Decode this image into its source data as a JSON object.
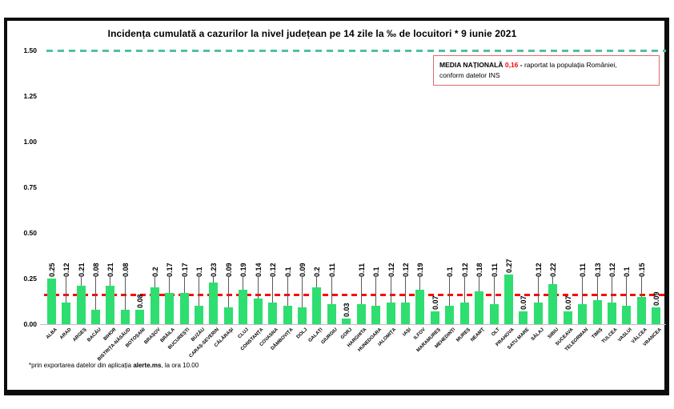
{
  "annotation": {
    "label": "MEDIA NAȚIONALĂ",
    "value": "0,16",
    "dash": "-",
    "line1_rest": "raportat la populația României,",
    "line2": "conform datelor INS"
  },
  "footnote": {
    "prefix": "*prin exportarea datelor din aplicația ",
    "bold": "alerte.ms",
    "suffix": ", la ora 10.00"
  },
  "chart_data": {
    "type": "bar",
    "title": "Incidența cumulată a cazurilor la nivel județean pe 14 zile la ‰ de locuitori *  9 iunie 2021",
    "categories": [
      "ALBA",
      "ARAD",
      "ARGEȘ",
      "BACĂU",
      "BIHOR",
      "BISTRIȚA-NĂSĂUD",
      "BOTOȘANI",
      "BRAȘOV",
      "BRĂILA",
      "BUCUREȘTI",
      "BUZĂU",
      "CARAȘ-SEVERIN",
      "CĂLĂRAȘI",
      "CLUJ",
      "CONSTANȚA",
      "COVASNA",
      "DÂMBOVIȚA",
      "DOLJ",
      "GALAȚI",
      "GIURGIU",
      "GORJ",
      "HARGHITA",
      "HUNEDOARA",
      "IALOMIȚA",
      "IAȘI",
      "ILFOV",
      "MARAMUREȘ",
      "MEHEDINȚI",
      "MUREȘ",
      "NEAMȚ",
      "OLT",
      "PRAHOVA",
      "SATU MARE",
      "SĂLAJ",
      "SIBIU",
      "SUCEAVA",
      "TELEORMAN",
      "TIMIȘ",
      "TULCEA",
      "VASLUI",
      "VÂLCEA",
      "VRANCEA"
    ],
    "values": [
      0.25,
      0.12,
      0.21,
      0.08,
      0.21,
      0.08,
      0.08,
      0.2,
      0.17,
      0.17,
      0.1,
      0.23,
      0.09,
      0.19,
      0.14,
      0.12,
      0.1,
      0.09,
      0.2,
      0.11,
      0.03,
      0.11,
      0.1,
      0.12,
      0.12,
      0.19,
      0.07,
      0.1,
      0.12,
      0.18,
      0.11,
      0.27,
      0.07,
      0.12,
      0.22,
      0.07,
      0.11,
      0.13,
      0.12,
      0.1,
      0.15,
      0.09
    ],
    "value_labels": [
      "0.25",
      "0.12",
      "0.21",
      "0.08",
      "0.21",
      "0.08",
      "0.08",
      "0.2",
      "0.17",
      "0.17",
      "0.1",
      "0.23",
      "0.09",
      "0.19",
      "0.14",
      "0.12",
      "0.1",
      "0.09",
      "0.2",
      "0.11",
      "0.03",
      "0.11",
      "0.1",
      "0.12",
      "0.12",
      "0.19",
      "0.07",
      "0.1",
      "0.12",
      "0.18",
      "0.11",
      "0.27",
      "0.07",
      "0.12",
      "0.22",
      "0.07",
      "0.11",
      "0.13",
      "0.12",
      "0.1",
      "0.15",
      "0.09"
    ],
    "ylim": [
      0,
      1.5
    ],
    "yticks": [
      "0.00",
      "0.25",
      "0.50",
      "0.75",
      "1.00",
      "1.25",
      "1.50"
    ],
    "grid": false,
    "legend": "none",
    "national_average": 0.16,
    "upper_reference_line": 1.5,
    "bar_color": "#2fde70",
    "national_average_line_color": "#ff0000",
    "reference_line_color": "#52bfa3",
    "low_label_indices": [
      6,
      20,
      26,
      32,
      35,
      41
    ]
  }
}
